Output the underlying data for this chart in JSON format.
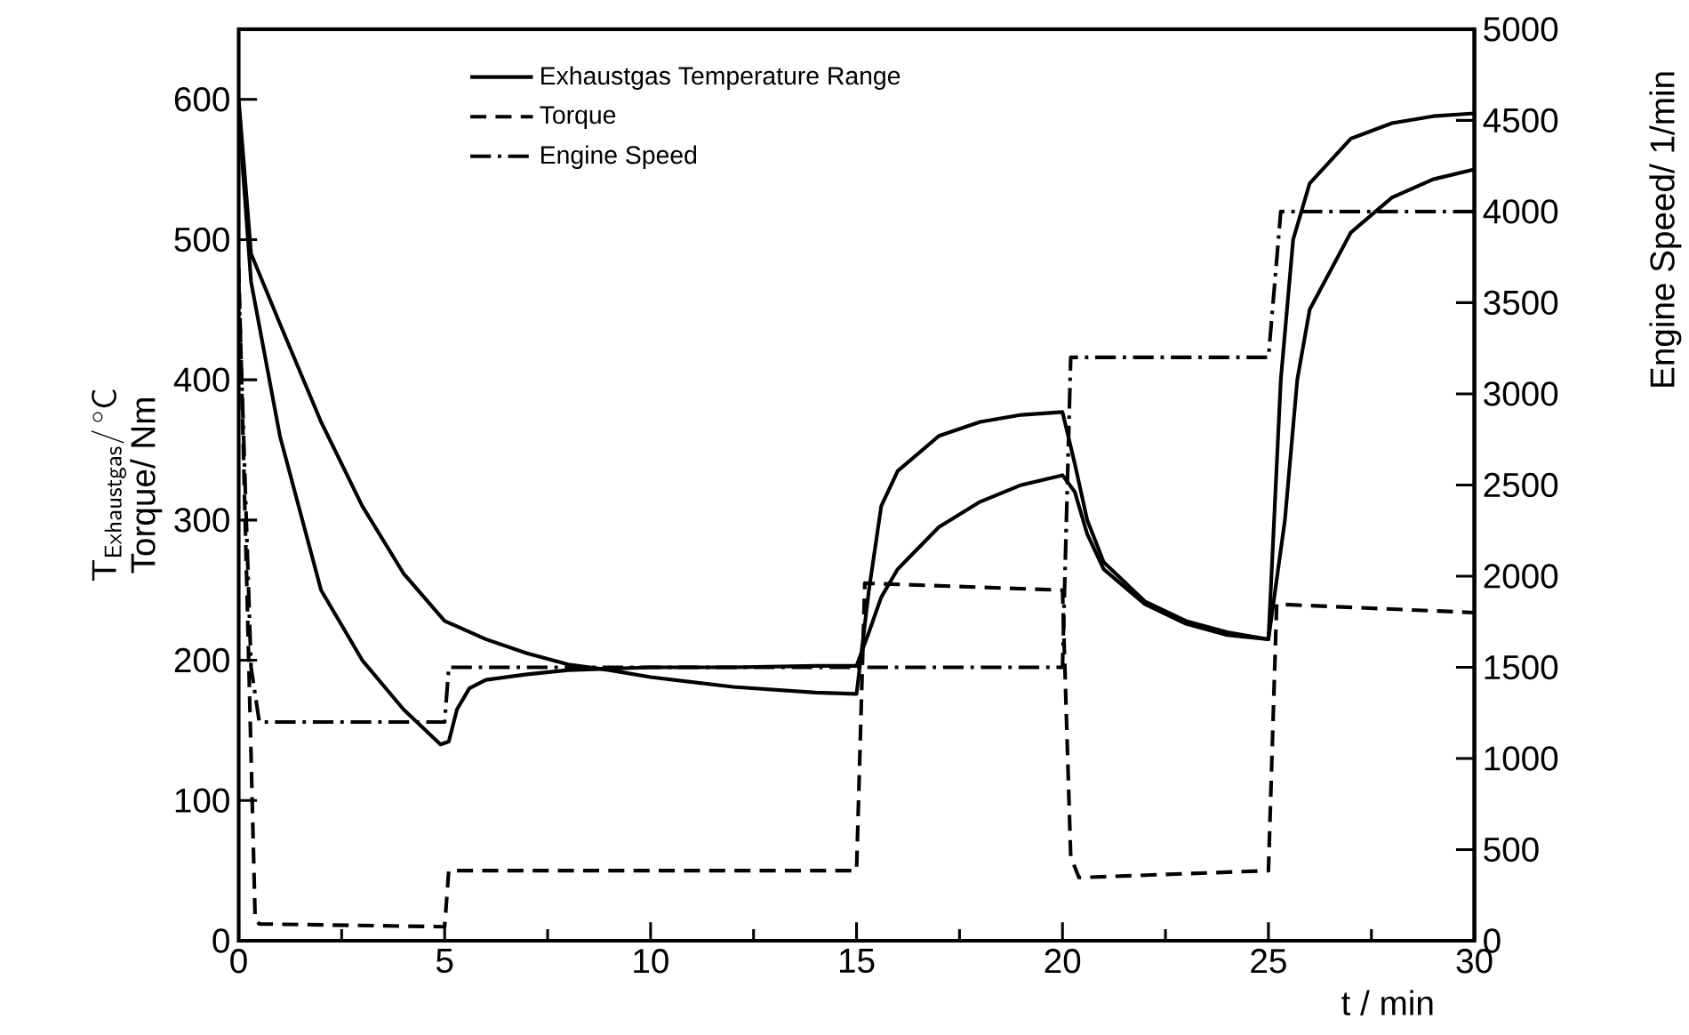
{
  "chart_data": {
    "type": "line",
    "xlabel": "t / min",
    "ylabel": "\\mathsf{T}_{\\mathsf{Exhaustgas}}/\\,{}^{\\circ}\\mathsf{C}",
    "y2label": "Engine Speed/ 1/min",
    "annotations": [
      "Torque/ Nm"
    ],
    "xlim": [
      0,
      30
    ],
    "xticks": [
      0,
      5,
      10,
      15,
      20,
      25,
      30
    ],
    "ylim": [
      0,
      650
    ],
    "yticks": [
      0,
      100,
      200,
      300,
      400,
      500,
      600
    ],
    "y2lim": [
      0,
      5000
    ],
    "y2ticks": [
      0,
      500,
      1000,
      1500,
      2000,
      2500,
      3000,
      3500,
      4000,
      4500,
      5000
    ],
    "legend": "top",
    "grid": false,
    "marker": "none",
    "series": [
      {
        "name": "Exhaustgas Temperature Range",
        "color": "#000000",
        "line_style": "solid",
        "x": [
          0,
          0.3,
          1,
          2,
          3,
          4,
          5,
          6,
          7,
          8,
          9,
          10,
          12,
          14,
          15,
          15.3,
          15.6,
          16,
          17,
          18,
          19,
          20,
          20.3,
          20.6,
          21,
          22,
          23,
          24,
          25,
          25.3,
          25.6,
          26,
          27,
          28,
          29,
          30
        ],
        "values": [
          600,
          490,
          440,
          370,
          310,
          262,
          228,
          215,
          205,
          197,
          193,
          188,
          181,
          177,
          176,
          250,
          310,
          335,
          360,
          370,
          375,
          377,
          340,
          300,
          270,
          242,
          228,
          220,
          215,
          400,
          500,
          540,
          572,
          583,
          588,
          590
        ]
      },
      {
        "color": "#000000",
        "line_style": "solid",
        "x": [
          0,
          0.3,
          1,
          2,
          3,
          4,
          4.9,
          5.1,
          5.3,
          5.6,
          6,
          7,
          8,
          9,
          10,
          12,
          14,
          15,
          15.3,
          15.6,
          16,
          17,
          18,
          19,
          20,
          20.3,
          20.6,
          21,
          22,
          23,
          24,
          25,
          25.4,
          25.7,
          26,
          27,
          28,
          29,
          30
        ],
        "values": [
          590,
          470,
          360,
          250,
          200,
          165,
          140,
          142,
          165,
          180,
          186,
          190,
          193,
          194,
          195,
          195,
          196,
          196,
          220,
          245,
          265,
          295,
          313,
          325,
          332,
          320,
          290,
          265,
          240,
          226,
          218,
          215,
          300,
          400,
          450,
          505,
          530,
          543,
          550
        ]
      },
      {
        "name": "Torque",
        "color": "#000000",
        "line_style": "dashed",
        "x": [
          0,
          0.2,
          0.4,
          0.5,
          5,
          5.1,
          15,
          15.2,
          20,
          20.2,
          20.4,
          25,
          25.2,
          30
        ],
        "values": [
          480,
          250,
          15,
          12,
          10,
          50,
          50,
          255,
          250,
          60,
          45,
          50,
          240,
          234
        ]
      },
      {
        "name": "Engine Speed",
        "color": "#000000",
        "line_style": "dashdot",
        "axis": "y2",
        "x": [
          0,
          0.3,
          0.5,
          5,
          5.1,
          20,
          20.2,
          25,
          25.3,
          30
        ],
        "values": [
          3600,
          1500,
          1200,
          1200,
          1500,
          1500,
          3200,
          3200,
          4000,
          4000
        ]
      }
    ]
  }
}
